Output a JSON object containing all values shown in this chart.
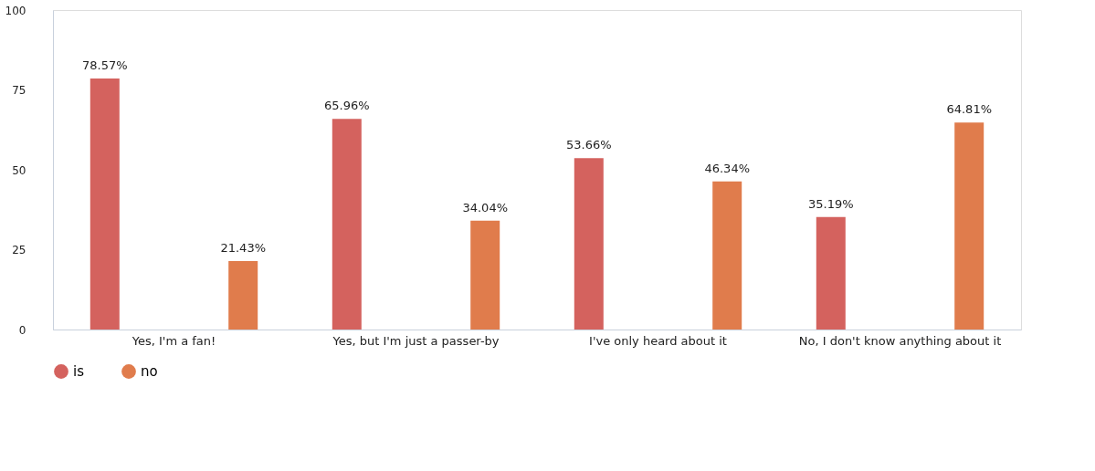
{
  "chart_data": {
    "type": "bar",
    "categories": [
      "Yes, I'm a fan!",
      "Yes, but I'm just a passer-by",
      "I've only heard about it",
      "No, I don't know anything about it"
    ],
    "series": [
      {
        "name": "is",
        "color": "#d4625e",
        "values": [
          78.57,
          65.96,
          53.66,
          35.19
        ],
        "value_labels": [
          "78.57%",
          "65.96%",
          "53.66%",
          "35.19%"
        ]
      },
      {
        "name": "no",
        "color": "#e07c4c",
        "values": [
          21.43,
          34.04,
          46.34,
          64.81
        ],
        "value_labels": [
          "21.43%",
          "34.04%",
          "46.34%",
          "64.81%"
        ]
      }
    ],
    "ylim": [
      0,
      100
    ],
    "yticks": [
      0,
      25,
      50,
      75,
      100
    ],
    "grid": false,
    "legend": "bottom"
  }
}
